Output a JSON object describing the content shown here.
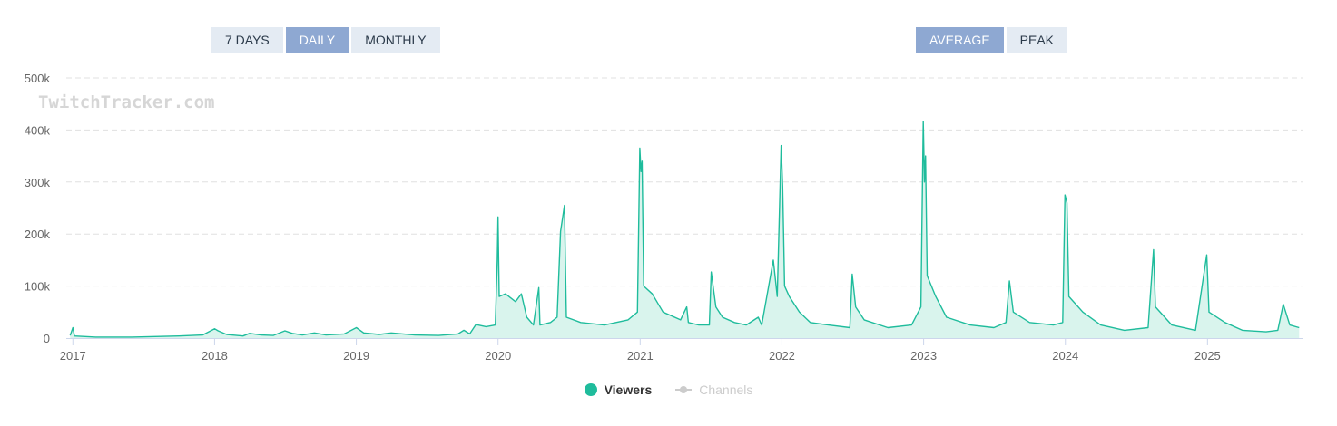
{
  "range_buttons": [
    {
      "label": "7 DAYS",
      "active": false
    },
    {
      "label": "DAILY",
      "active": true
    },
    {
      "label": "MONTHLY",
      "active": false
    }
  ],
  "metric_buttons": [
    {
      "label": "AVERAGE",
      "active": true
    },
    {
      "label": "PEAK",
      "active": false
    }
  ],
  "watermark": "TwitchTracker.com",
  "colors": {
    "series": "#1fbc9c",
    "fill": "#d2f2ea",
    "grid": "#e0e0e0",
    "axis_text": "#666666",
    "watermark": "#d6d6d6"
  },
  "legend": [
    {
      "name": "Viewers",
      "enabled": true
    },
    {
      "name": "Channels",
      "enabled": false
    }
  ],
  "chart_data": {
    "type": "area",
    "ylim": [
      0,
      500000
    ],
    "y_ticks": [
      "0",
      "100k",
      "200k",
      "300k",
      "400k",
      "500k"
    ],
    "x_ticks": [
      "2017",
      "2018",
      "2019",
      "2020",
      "2021",
      "2022",
      "2023",
      "2024",
      "2025"
    ],
    "xlim": [
      "2016-12-15",
      "2025-09-05"
    ],
    "grid": "horizontal dashed",
    "legend_position": "bottom-center",
    "series": [
      {
        "name": "Viewers",
        "points": [
          [
            "2016-12-25",
            5000
          ],
          [
            "2017-01-01",
            20000
          ],
          [
            "2017-01-05",
            4000
          ],
          [
            "2017-03-01",
            2000
          ],
          [
            "2017-06-01",
            2000
          ],
          [
            "2017-08-01",
            3000
          ],
          [
            "2017-10-01",
            4000
          ],
          [
            "2017-12-01",
            6000
          ],
          [
            "2018-01-01",
            18000
          ],
          [
            "2018-01-10",
            14000
          ],
          [
            "2018-02-01",
            7000
          ],
          [
            "2018-03-15",
            4000
          ],
          [
            "2018-04-01",
            9000
          ],
          [
            "2018-05-01",
            6000
          ],
          [
            "2018-06-01",
            5000
          ],
          [
            "2018-07-01",
            14000
          ],
          [
            "2018-07-20",
            9000
          ],
          [
            "2018-08-15",
            6000
          ],
          [
            "2018-09-15",
            10000
          ],
          [
            "2018-10-15",
            6000
          ],
          [
            "2018-12-01",
            8000
          ],
          [
            "2019-01-01",
            20000
          ],
          [
            "2019-01-20",
            10000
          ],
          [
            "2019-03-01",
            7000
          ],
          [
            "2019-04-01",
            10000
          ],
          [
            "2019-05-01",
            8000
          ],
          [
            "2019-06-01",
            6000
          ],
          [
            "2019-08-01",
            5000
          ],
          [
            "2019-09-20",
            8000
          ],
          [
            "2019-10-05",
            15000
          ],
          [
            "2019-10-20",
            8000
          ],
          [
            "2019-11-05",
            26000
          ],
          [
            "2019-12-01",
            22000
          ],
          [
            "2019-12-25",
            25000
          ],
          [
            "2019-12-30",
            150000
          ],
          [
            "2020-01-01",
            233000
          ],
          [
            "2020-01-04",
            80000
          ],
          [
            "2020-01-20",
            85000
          ],
          [
            "2020-02-15",
            70000
          ],
          [
            "2020-03-01",
            85000
          ],
          [
            "2020-03-15",
            40000
          ],
          [
            "2020-04-01",
            25000
          ],
          [
            "2020-04-15",
            97000
          ],
          [
            "2020-04-18",
            25000
          ],
          [
            "2020-05-15",
            30000
          ],
          [
            "2020-06-01",
            40000
          ],
          [
            "2020-06-10",
            205000
          ],
          [
            "2020-06-20",
            255000
          ],
          [
            "2020-06-25",
            40000
          ],
          [
            "2020-08-01",
            30000
          ],
          [
            "2020-10-01",
            25000
          ],
          [
            "2020-12-01",
            35000
          ],
          [
            "2020-12-25",
            50000
          ],
          [
            "2020-12-31",
            365000
          ],
          [
            "2021-01-03",
            320000
          ],
          [
            "2021-01-06",
            340000
          ],
          [
            "2021-01-10",
            100000
          ],
          [
            "2021-02-01",
            85000
          ],
          [
            "2021-03-01",
            50000
          ],
          [
            "2021-04-15",
            35000
          ],
          [
            "2021-05-01",
            60000
          ],
          [
            "2021-05-05",
            30000
          ],
          [
            "2021-06-01",
            25000
          ],
          [
            "2021-06-28",
            25000
          ],
          [
            "2021-07-03",
            127000
          ],
          [
            "2021-07-15",
            60000
          ],
          [
            "2021-08-01",
            40000
          ],
          [
            "2021-09-01",
            30000
          ],
          [
            "2021-10-01",
            25000
          ],
          [
            "2021-11-01",
            40000
          ],
          [
            "2021-11-10",
            25000
          ],
          [
            "2021-12-10",
            150000
          ],
          [
            "2021-12-20",
            80000
          ],
          [
            "2021-12-30",
            370000
          ],
          [
            "2022-01-03",
            290000
          ],
          [
            "2022-01-08",
            100000
          ],
          [
            "2022-01-20",
            80000
          ],
          [
            "2022-02-15",
            50000
          ],
          [
            "2022-03-15",
            30000
          ],
          [
            "2022-05-01",
            25000
          ],
          [
            "2022-06-25",
            20000
          ],
          [
            "2022-07-01",
            123000
          ],
          [
            "2022-07-10",
            60000
          ],
          [
            "2022-08-01",
            35000
          ],
          [
            "2022-10-01",
            20000
          ],
          [
            "2022-12-01",
            25000
          ],
          [
            "2022-12-25",
            60000
          ],
          [
            "2022-12-31",
            416000
          ],
          [
            "2023-01-03",
            300000
          ],
          [
            "2023-01-06",
            350000
          ],
          [
            "2023-01-10",
            120000
          ],
          [
            "2023-02-01",
            80000
          ],
          [
            "2023-03-01",
            40000
          ],
          [
            "2023-05-01",
            25000
          ],
          [
            "2023-07-01",
            20000
          ],
          [
            "2023-08-01",
            30000
          ],
          [
            "2023-08-10",
            110000
          ],
          [
            "2023-08-20",
            50000
          ],
          [
            "2023-10-01",
            30000
          ],
          [
            "2023-12-01",
            25000
          ],
          [
            "2023-12-25",
            30000
          ],
          [
            "2023-12-31",
            275000
          ],
          [
            "2024-01-05",
            260000
          ],
          [
            "2024-01-10",
            80000
          ],
          [
            "2024-02-15",
            50000
          ],
          [
            "2024-04-01",
            25000
          ],
          [
            "2024-06-01",
            15000
          ],
          [
            "2024-08-01",
            20000
          ],
          [
            "2024-08-15",
            170000
          ],
          [
            "2024-08-20",
            60000
          ],
          [
            "2024-10-01",
            25000
          ],
          [
            "2024-12-01",
            15000
          ],
          [
            "2024-12-30",
            160000
          ],
          [
            "2025-01-05",
            50000
          ],
          [
            "2025-02-15",
            30000
          ],
          [
            "2025-04-01",
            15000
          ],
          [
            "2025-06-01",
            12000
          ],
          [
            "2025-07-01",
            15000
          ],
          [
            "2025-07-15",
            65000
          ],
          [
            "2025-08-01",
            25000
          ],
          [
            "2025-08-25",
            20000
          ]
        ]
      }
    ]
  }
}
